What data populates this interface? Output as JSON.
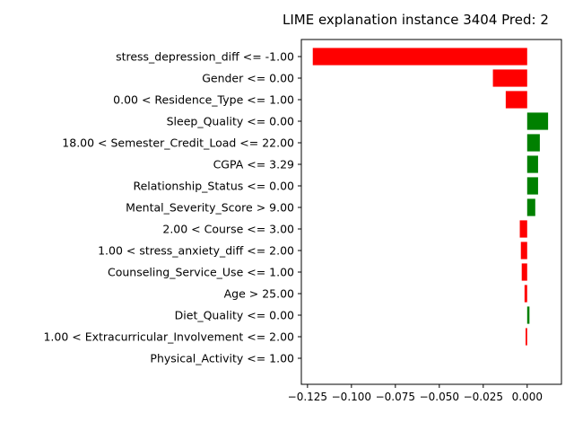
{
  "chart_data": {
    "type": "bar",
    "orientation": "horizontal",
    "title": "LIME explanation instance 3404 Pred: 2",
    "xlabel": "",
    "ylabel": "",
    "xlim": [
      -0.1285,
      0.0195
    ],
    "x_ticks": [
      -0.125,
      -0.1,
      -0.075,
      -0.05,
      -0.025,
      0.0
    ],
    "x_tick_labels": [
      "−0.125",
      "−0.100",
      "−0.075",
      "−0.050",
      "−0.025",
      "0.000"
    ],
    "grid": false,
    "positive_color": "#008000",
    "negative_color": "#ff0000",
    "categories": [
      "stress_depression_diff <= -1.00",
      "Gender <= 0.00",
      "0.00 < Residence_Type <= 1.00",
      "Sleep_Quality <= 0.00",
      "18.00 < Semester_Credit_Load <= 22.00",
      "CGPA <= 3.29",
      "Relationship_Status <= 0.00",
      "Mental_Severity_Score > 9.00",
      "2.00 < Course <= 3.00",
      "1.00 < stress_anxiety_diff <= 2.00",
      "Counseling_Service_Use <= 1.00",
      "Age > 25.00",
      "Diet_Quality <= 0.00",
      "1.00 < Extracurricular_Involvement <= 2.00",
      "Physical_Activity <= 1.00"
    ],
    "values": [
      -0.122,
      -0.0195,
      -0.0122,
      0.0119,
      0.0072,
      0.0062,
      0.0062,
      0.0046,
      -0.0042,
      -0.0036,
      -0.0031,
      -0.0015,
      0.0013,
      -0.0009,
      0.0
    ]
  }
}
